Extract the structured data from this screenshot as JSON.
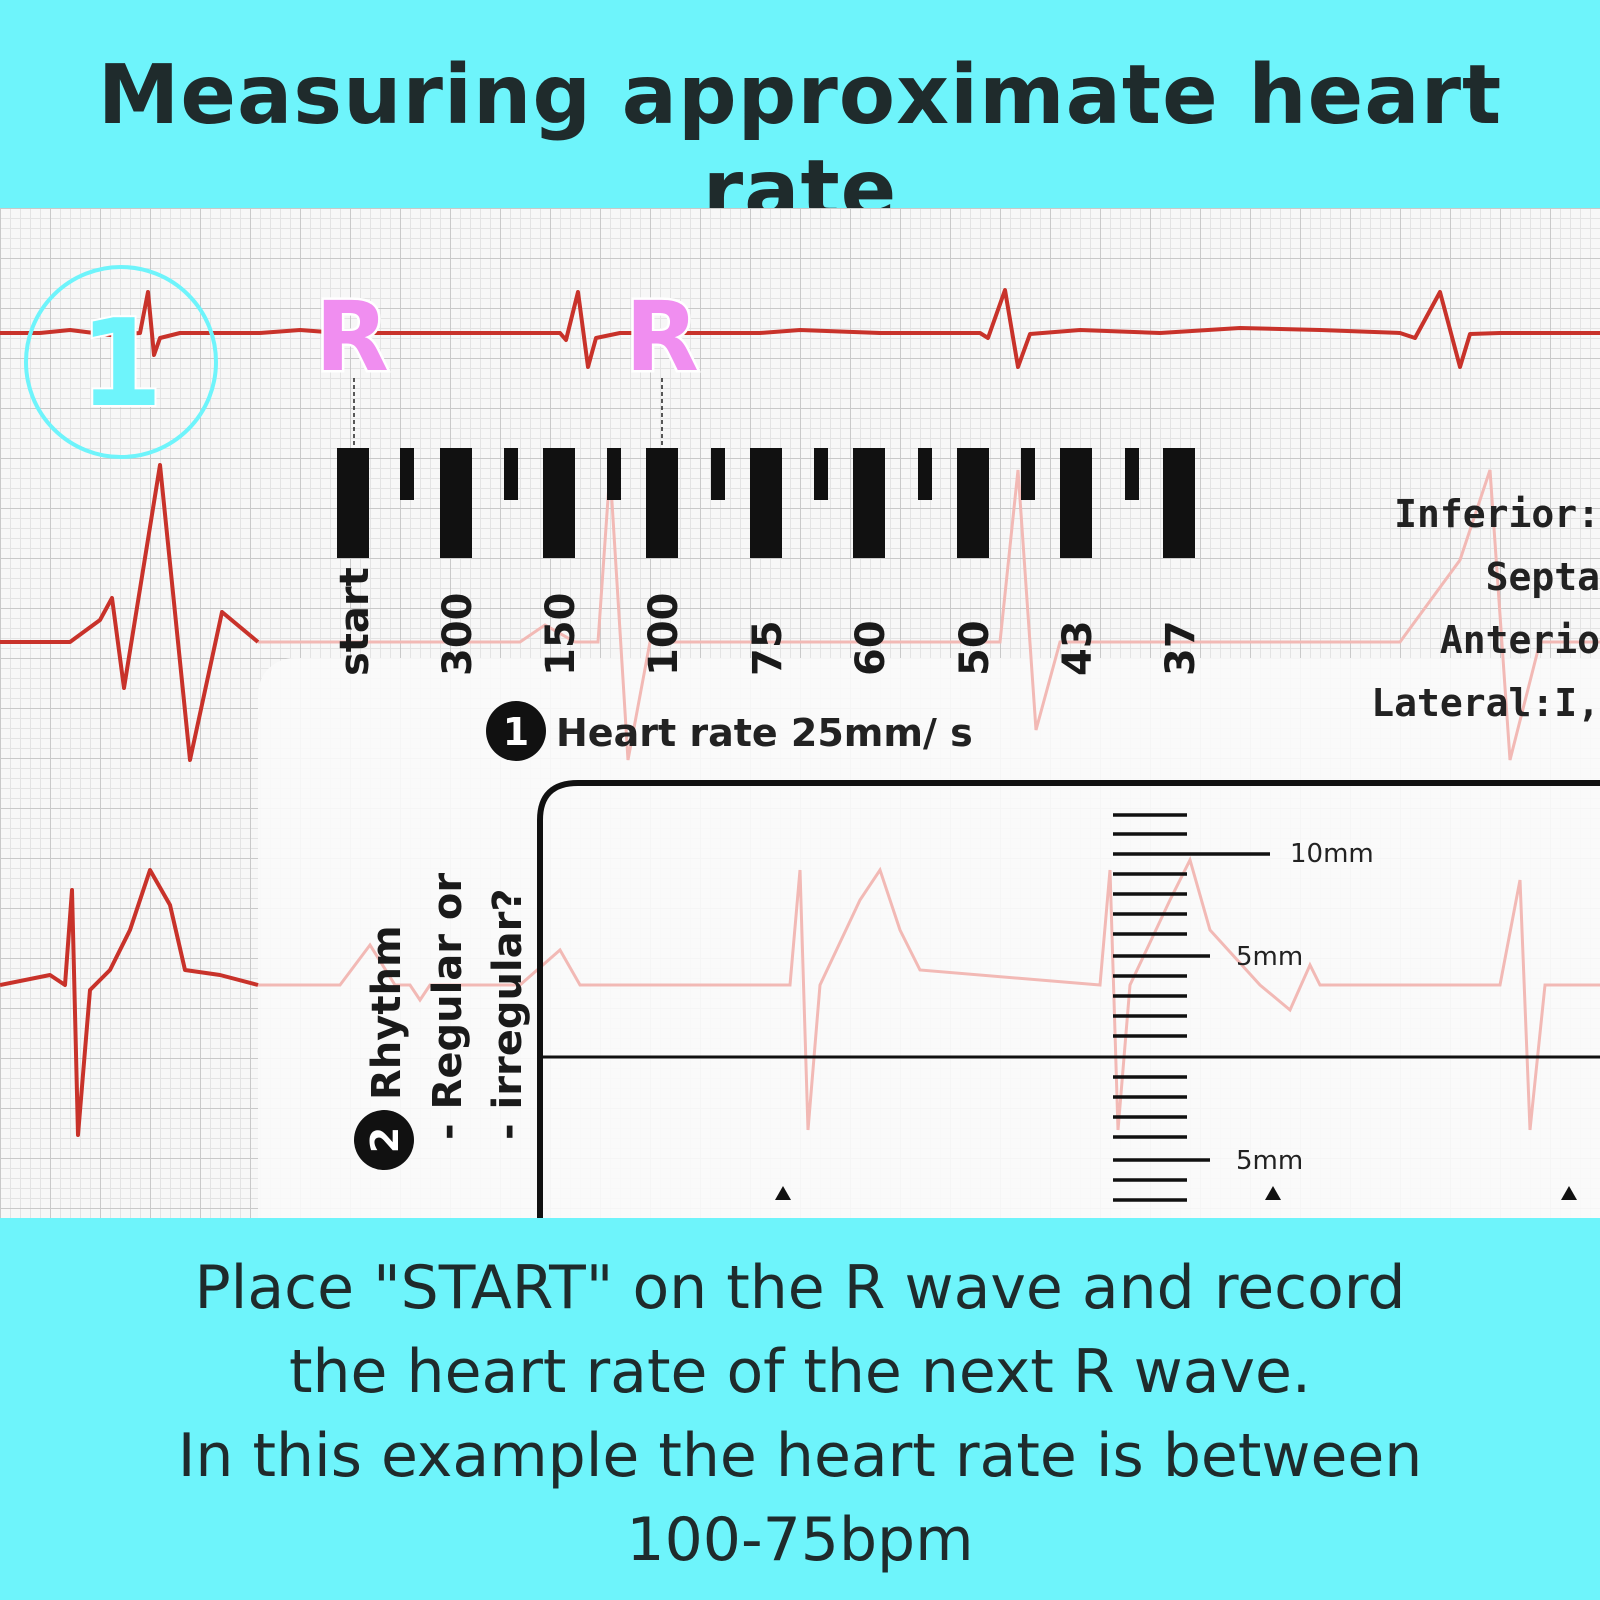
{
  "title": "Measuring approximate heart rate",
  "step_number": "1",
  "r_marker": "R",
  "ruler": {
    "start_label": "start",
    "rate_ticks": [
      "300",
      "150",
      "100",
      "75",
      "60",
      "50",
      "43",
      "37"
    ],
    "heart_rate_step": "1",
    "heart_rate_label": "Heart rate 25mm/ s",
    "leads": [
      "Inferior:",
      "Septa",
      "Anterio",
      "Lateral:I,"
    ],
    "rhythm_step": "2",
    "rhythm_label": "Rhythm",
    "rhythm_q1": "- Regular or",
    "rhythm_q2": "- irregular?",
    "mm_labels": [
      "10mm",
      "5mm",
      "5mm"
    ]
  },
  "footer": {
    "lines": [
      "Place \"START\" on the R wave and record",
      "the heart rate of the next R wave.",
      "In this example the heart rate is between",
      "100-75bpm"
    ]
  },
  "colors": {
    "background": "#6ef4fb",
    "ecg_trace": "#c8322a",
    "faint_trace": "#f2b9b5",
    "r_marker": "#f08ef0"
  }
}
